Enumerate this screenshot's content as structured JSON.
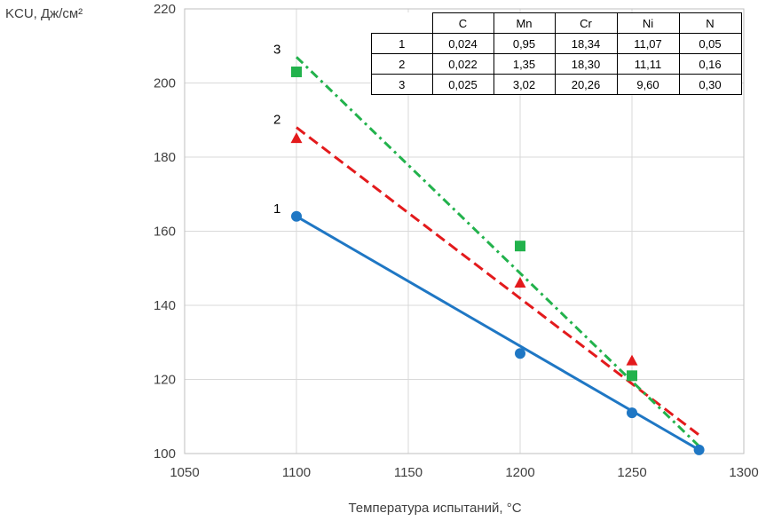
{
  "chart_data": {
    "type": "line",
    "title": "",
    "ylabel": "KCU, Дж/см²",
    "xlabel": "Температура  испытаний, °С",
    "xlim": [
      1050,
      1300
    ],
    "ylim": [
      100,
      220
    ],
    "xticks": [
      1050,
      1100,
      1150,
      1200,
      1250,
      1300
    ],
    "yticks": [
      100,
      120,
      140,
      160,
      180,
      200,
      220
    ],
    "grid": true,
    "series": [
      {
        "name": "1",
        "color": "#1f77c4",
        "marker": "circle",
        "line_style": "solid",
        "points": [
          [
            1100,
            164
          ],
          [
            1200,
            127
          ],
          [
            1250,
            111
          ],
          [
            1280,
            101
          ]
        ],
        "trend": [
          [
            1100,
            164
          ],
          [
            1280,
            101
          ]
        ]
      },
      {
        "name": "2",
        "color": "#e31a1c",
        "marker": "triangle",
        "line_style": "dashed",
        "points": [
          [
            1100,
            185
          ],
          [
            1200,
            146
          ],
          [
            1250,
            125
          ]
        ],
        "trend": [
          [
            1100,
            188
          ],
          [
            1280,
            105
          ]
        ]
      },
      {
        "name": "3",
        "color": "#22b24c",
        "marker": "square",
        "line_style": "dash-dot",
        "points": [
          [
            1100,
            203
          ],
          [
            1200,
            156
          ],
          [
            1250,
            121
          ]
        ],
        "trend": [
          [
            1100,
            207
          ],
          [
            1280,
            102
          ]
        ]
      }
    ]
  },
  "composition_table": {
    "headers": [
      "",
      "C",
      "Mn",
      "Cr",
      "Ni",
      "N"
    ],
    "rows": [
      [
        "1",
        "0,024",
        "0,95",
        "18,34",
        "11,07",
        "0,05"
      ],
      [
        "2",
        "0,022",
        "1,35",
        "18,30",
        "11,11",
        "0,16"
      ],
      [
        "3",
        "0,025",
        "3,02",
        "20,26",
        "9,60",
        "0,30"
      ]
    ]
  }
}
